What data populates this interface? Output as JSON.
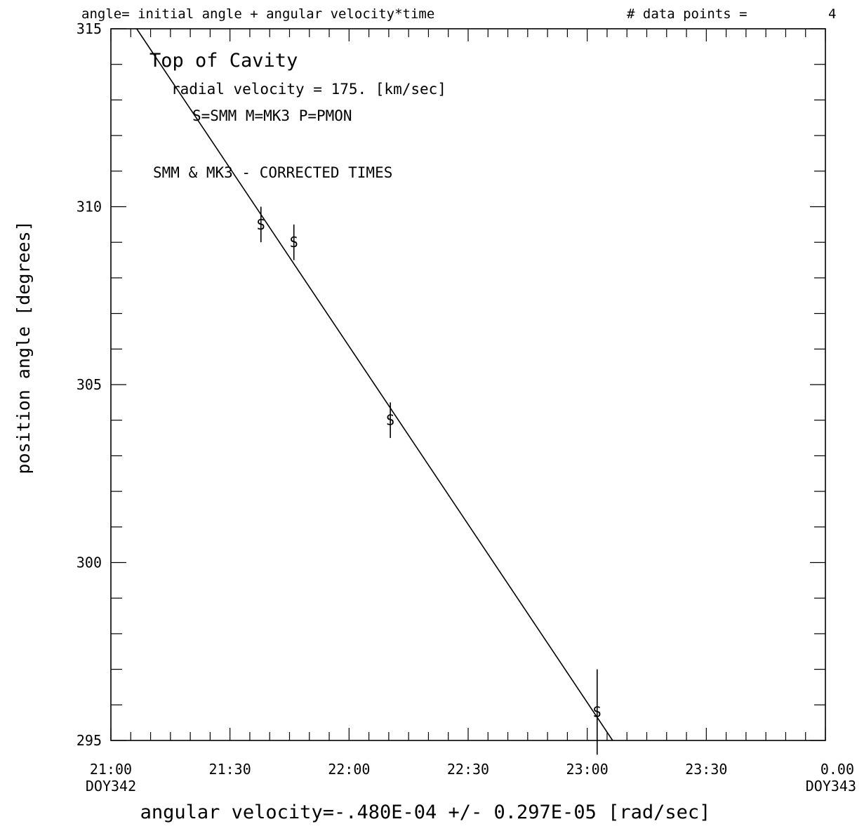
{
  "chart_data": {
    "type": "scatter",
    "header_left": "angle= initial angle + angular velocity*time",
    "header_right": "# data points =",
    "header_count": "4",
    "ylabel": "position angle [degrees]",
    "xlabel": "angular velocity=-.480E-04 +/- 0.297E-05  [rad/sec]",
    "annotations": {
      "title": "Top of Cavity",
      "radial_velocity": "radial velocity =  175. [km/sec]",
      "legend_key": "S=SMM  M=MK3  P=PMON",
      "note": "SMM & MK3 - CORRECTED TIMES"
    },
    "x_unit": "minutes after 21:00 DOY342",
    "xlim": [
      0,
      180
    ],
    "ylim": [
      295,
      315
    ],
    "x_ticks": [
      {
        "x": 0,
        "label": "21:00",
        "sub": "DOY342"
      },
      {
        "x": 30,
        "label": "21:30",
        "sub": ""
      },
      {
        "x": 60,
        "label": "22:00",
        "sub": ""
      },
      {
        "x": 90,
        "label": "22:30",
        "sub": ""
      },
      {
        "x": 120,
        "label": "23:00",
        "sub": ""
      },
      {
        "x": 150,
        "label": "23:30",
        "sub": ""
      },
      {
        "x": 180,
        "label": "0.00",
        "sub": "DOY343"
      }
    ],
    "y_ticks": [
      {
        "y": 295,
        "label": "295"
      },
      {
        "y": 300,
        "label": "300"
      },
      {
        "y": 305,
        "label": "305"
      },
      {
        "y": 310,
        "label": "310"
      },
      {
        "y": 315,
        "label": "315"
      }
    ],
    "points": [
      {
        "x": 37.8,
        "y": 309.5,
        "yerr": 0.5,
        "symbol": "S"
      },
      {
        "x": 46.1,
        "y": 309.0,
        "yerr": 0.5,
        "symbol": "S"
      },
      {
        "x": 70.4,
        "y": 304.0,
        "yerr": 0.5,
        "symbol": "S"
      },
      {
        "x": 122.5,
        "y": 295.8,
        "yerr": 1.2,
        "symbol": "S"
      }
    ],
    "fit_line": [
      {
        "x": 6.5,
        "y": 315
      },
      {
        "x": 126.4,
        "y": 295
      }
    ]
  }
}
